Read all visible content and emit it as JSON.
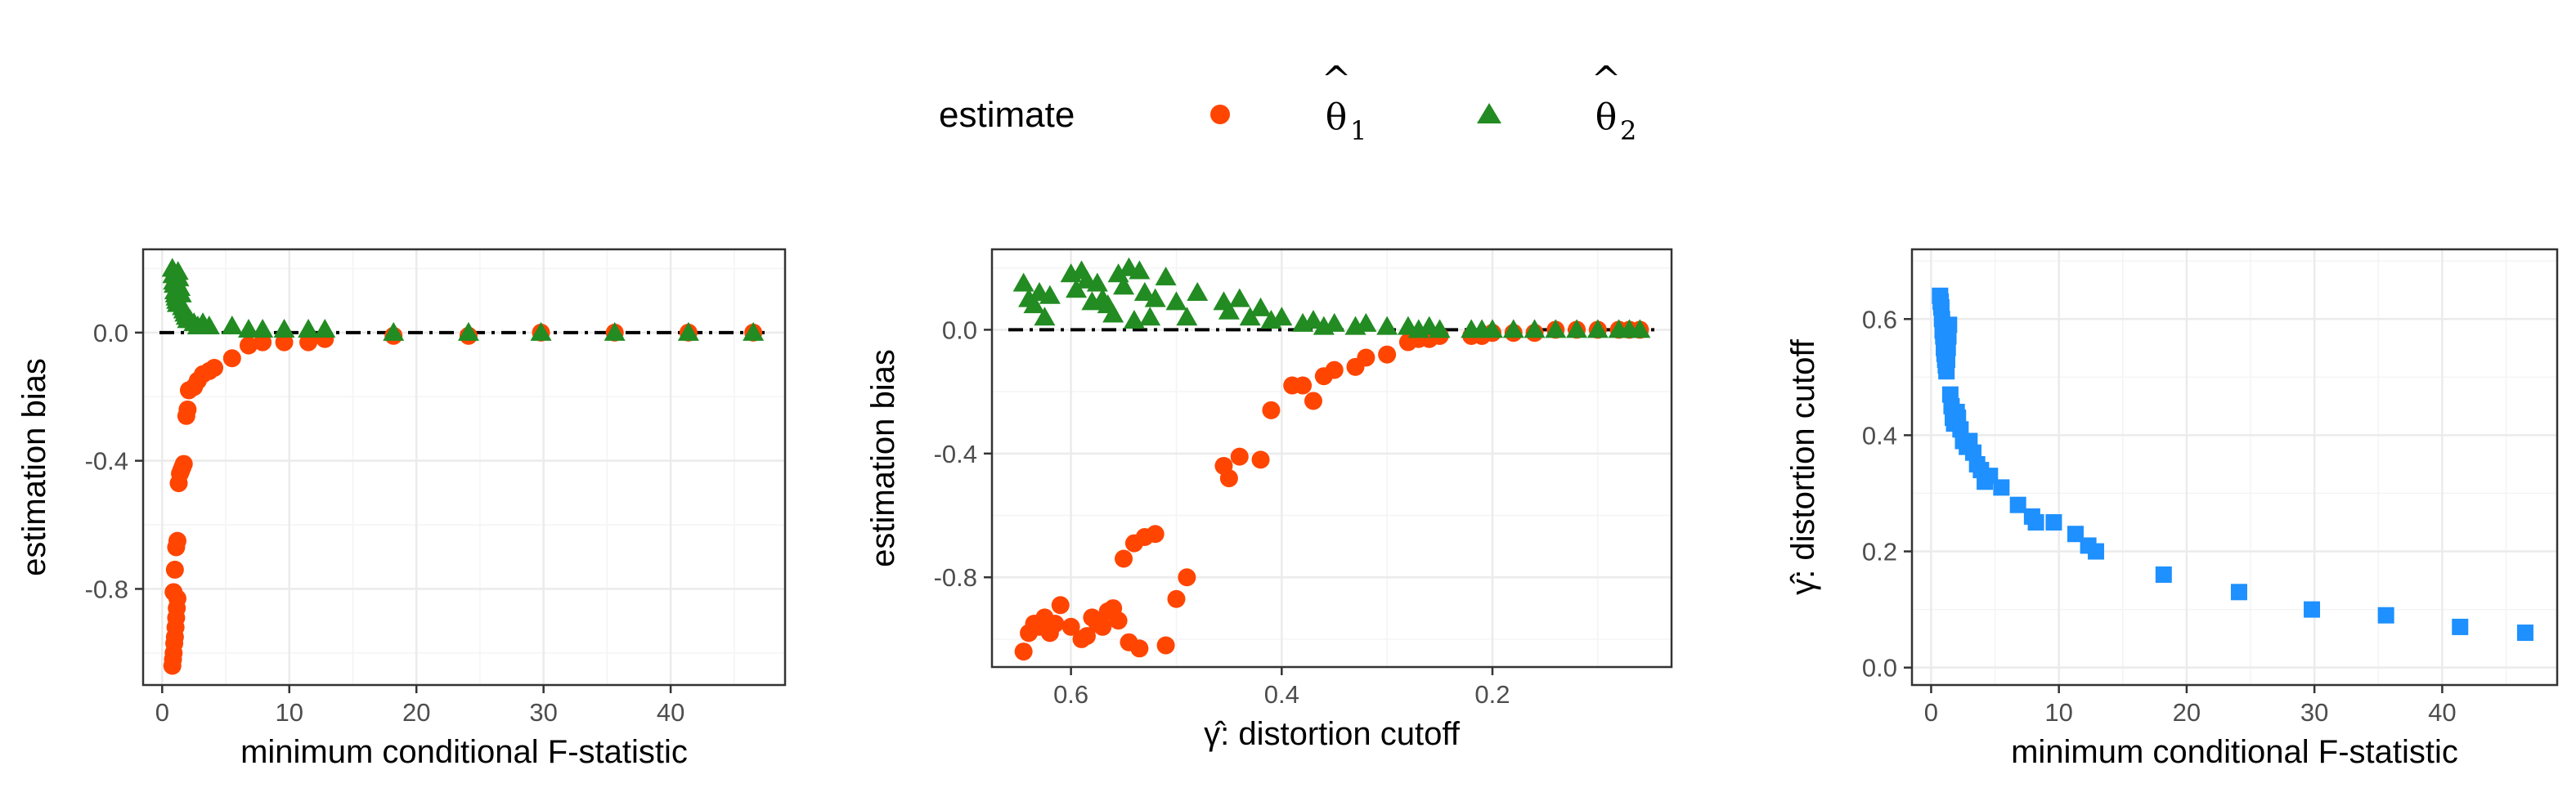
{
  "legend": {
    "title": "estimate",
    "entries": [
      {
        "symbol": "θ",
        "hat": "^",
        "subscript": "1",
        "color": "#FF4500",
        "shape": "circle"
      },
      {
        "symbol": "θ",
        "hat": "^",
        "subscript": "2",
        "color": "#228B22",
        "shape": "triangle"
      }
    ]
  },
  "colors": {
    "theta1": "#FF4500",
    "theta2": "#228B22",
    "gamma": "#1E90FF",
    "reference_line": "#000000",
    "grid_major": "#EBEBEB",
    "grid_minor": "#F4F4F4",
    "panel_border": "#333333"
  },
  "chart_data": [
    {
      "type": "scatter",
      "title": "",
      "xlabel": "minimum conditional F-statistic",
      "ylabel": "estimation bias",
      "xlim": [
        -1.5,
        49
      ],
      "ylim": [
        -1.1,
        0.26
      ],
      "xticks": [
        0,
        10,
        20,
        30,
        40
      ],
      "xtick_labels": [
        "0",
        "10",
        "20",
        "30",
        "40"
      ],
      "yticks": [
        0.0,
        -0.4,
        -0.8
      ],
      "ytick_labels": [
        "0.0",
        "-0.4",
        "-0.8"
      ],
      "reference_line": 0,
      "series": [
        {
          "name": "theta1",
          "marker": "circle",
          "color": "#FF4500",
          "x": [
            0.8,
            0.85,
            0.9,
            0.95,
            1.0,
            1.05,
            1.1,
            1.15,
            1.2,
            0.9,
            1.0,
            1.1,
            1.2,
            1.3,
            1.4,
            1.5,
            1.6,
            1.7,
            1.9,
            2.0,
            2.1,
            2.5,
            2.8,
            3.2,
            3.7,
            4.1,
            5.5,
            6.8,
            7.9,
            9.6,
            11.5,
            12.8,
            18.2,
            24.1,
            29.8,
            35.6,
            41.4,
            46.5
          ],
          "y": [
            -1.04,
            -1.02,
            -1.0,
            -0.97,
            -0.95,
            -0.92,
            -0.89,
            -0.86,
            -0.83,
            -0.81,
            -0.74,
            -0.67,
            -0.65,
            -0.47,
            -0.44,
            -0.43,
            -0.42,
            -0.41,
            -0.26,
            -0.24,
            -0.18,
            -0.17,
            -0.15,
            -0.13,
            -0.12,
            -0.11,
            -0.08,
            -0.04,
            -0.03,
            -0.03,
            -0.03,
            -0.02,
            -0.01,
            -0.01,
            0.0,
            0.0,
            0.0,
            0.0
          ]
        },
        {
          "name": "theta2",
          "marker": "triangle",
          "color": "#228B22",
          "x": [
            0.8,
            0.85,
            0.9,
            0.95,
            1.0,
            1.05,
            1.1,
            1.15,
            1.2,
            1.25,
            1.3,
            1.4,
            1.5,
            1.6,
            1.7,
            1.8,
            1.9,
            2.0,
            2.2,
            2.5,
            2.8,
            3.2,
            3.7,
            5.5,
            6.8,
            7.9,
            9.6,
            11.5,
            12.8,
            18.2,
            24.1,
            29.8,
            35.6,
            41.4,
            46.5
          ],
          "y": [
            0.2,
            0.18,
            0.16,
            0.15,
            0.13,
            0.12,
            0.11,
            0.1,
            0.09,
            0.19,
            0.17,
            0.14,
            0.12,
            0.08,
            0.07,
            0.06,
            0.05,
            0.04,
            0.04,
            0.03,
            0.02,
            0.03,
            0.02,
            0.02,
            0.01,
            0.01,
            0.01,
            0.01,
            0.01,
            0.0,
            0.0,
            0.0,
            0.0,
            0.0,
            0.0
          ]
        }
      ]
    },
    {
      "type": "scatter",
      "title": "",
      "xlabel": "γ̂: distortion cutoff",
      "ylabel": "estimation bias",
      "x_reversed": true,
      "xlim": [
        0.675,
        0.03
      ],
      "ylim": [
        -1.09,
        0.26
      ],
      "xticks": [
        0.6,
        0.4,
        0.2
      ],
      "xtick_labels": [
        "0.6",
        "0.4",
        "0.2"
      ],
      "yticks": [
        0.0,
        -0.4,
        -0.8
      ],
      "ytick_labels": [
        "0.0",
        "-0.4",
        "-0.8"
      ],
      "reference_line": 0,
      "series": [
        {
          "name": "theta1",
          "marker": "circle",
          "color": "#FF4500",
          "x": [
            0.645,
            0.64,
            0.635,
            0.63,
            0.625,
            0.62,
            0.615,
            0.61,
            0.6,
            0.59,
            0.585,
            0.58,
            0.575,
            0.57,
            0.565,
            0.56,
            0.555,
            0.55,
            0.545,
            0.54,
            0.535,
            0.53,
            0.52,
            0.51,
            0.5,
            0.49,
            0.455,
            0.45,
            0.44,
            0.42,
            0.41,
            0.39,
            0.38,
            0.37,
            0.36,
            0.35,
            0.33,
            0.32,
            0.3,
            0.28,
            0.27,
            0.26,
            0.25,
            0.22,
            0.21,
            0.2,
            0.18,
            0.16,
            0.14,
            0.12,
            0.1,
            0.08,
            0.07,
            0.06
          ],
          "y": [
            -1.04,
            -0.98,
            -0.95,
            -0.96,
            -0.93,
            -0.98,
            -0.95,
            -0.89,
            -0.96,
            -1.0,
            -0.99,
            -0.93,
            -0.95,
            -0.96,
            -0.91,
            -0.9,
            -0.94,
            -0.74,
            -1.01,
            -0.69,
            -1.03,
            -0.67,
            -0.66,
            -1.02,
            -0.87,
            -0.8,
            -0.44,
            -0.48,
            -0.41,
            -0.42,
            -0.26,
            -0.18,
            -0.18,
            -0.23,
            -0.15,
            -0.13,
            -0.12,
            -0.09,
            -0.08,
            -0.04,
            -0.03,
            -0.03,
            -0.02,
            -0.02,
            -0.02,
            -0.01,
            -0.01,
            -0.01,
            -0.0,
            0.0,
            0.0,
            0.0,
            0.0,
            0.0
          ]
        },
        {
          "name": "theta2",
          "marker": "triangle",
          "color": "#228B22",
          "x": [
            0.645,
            0.64,
            0.635,
            0.63,
            0.625,
            0.62,
            0.6,
            0.595,
            0.59,
            0.585,
            0.58,
            0.575,
            0.57,
            0.565,
            0.56,
            0.555,
            0.55,
            0.545,
            0.54,
            0.535,
            0.53,
            0.525,
            0.52,
            0.51,
            0.5,
            0.49,
            0.48,
            0.455,
            0.45,
            0.44,
            0.43,
            0.42,
            0.41,
            0.4,
            0.38,
            0.37,
            0.36,
            0.35,
            0.33,
            0.32,
            0.3,
            0.28,
            0.27,
            0.26,
            0.25,
            0.22,
            0.21,
            0.2,
            0.18,
            0.16,
            0.14,
            0.12,
            0.1,
            0.08,
            0.07,
            0.06
          ],
          "y": [
            0.15,
            0.1,
            0.08,
            0.12,
            0.04,
            0.11,
            0.18,
            0.13,
            0.19,
            0.16,
            0.09,
            0.15,
            0.1,
            0.08,
            0.05,
            0.18,
            0.14,
            0.2,
            0.03,
            0.19,
            0.12,
            0.04,
            0.1,
            0.17,
            0.09,
            0.04,
            0.12,
            0.09,
            0.06,
            0.1,
            0.04,
            0.07,
            0.03,
            0.04,
            0.02,
            0.03,
            0.01,
            0.02,
            0.01,
            0.02,
            0.01,
            0.01,
            0.0,
            0.01,
            0.0,
            0.0,
            0.0,
            0.0,
            0.0,
            0.0,
            0.0,
            0.0,
            0.0,
            0.0,
            0.0,
            0.0
          ]
        }
      ]
    },
    {
      "type": "scatter",
      "title": "",
      "xlabel": "minimum conditional F-statistic",
      "ylabel": "γ̂: distortion cutoff",
      "xlim": [
        -1.5,
        49
      ],
      "ylim": [
        -0.03,
        0.72
      ],
      "xticks": [
        0,
        10,
        20,
        30,
        40
      ],
      "xtick_labels": [
        "0",
        "10",
        "20",
        "30",
        "40"
      ],
      "yticks": [
        0.0,
        0.2,
        0.4,
        0.6
      ],
      "ytick_labels": [
        "0.0",
        "0.2",
        "0.4",
        "0.6"
      ],
      "series": [
        {
          "name": "gamma",
          "marker": "square",
          "color": "#1E90FF",
          "x": [
            0.7,
            0.75,
            0.8,
            0.85,
            0.9,
            0.95,
            1.0,
            1.05,
            1.1,
            1.15,
            1.2,
            1.25,
            1.3,
            1.35,
            1.4,
            1.5,
            1.6,
            1.7,
            1.8,
            2.0,
            2.1,
            2.3,
            2.5,
            2.8,
            3.0,
            3.3,
            3.6,
            3.9,
            4.2,
            4.6,
            5.5,
            6.8,
            7.9,
            8.2,
            9.6,
            11.3,
            12.3,
            12.9,
            18.2,
            24.1,
            29.8,
            35.6,
            41.4,
            46.5
          ],
          "y": [
            0.64,
            0.63,
            0.62,
            0.6,
            0.58,
            0.57,
            0.55,
            0.54,
            0.53,
            0.52,
            0.51,
            0.53,
            0.55,
            0.57,
            0.59,
            0.47,
            0.45,
            0.43,
            0.42,
            0.44,
            0.43,
            0.41,
            0.39,
            0.38,
            0.39,
            0.37,
            0.35,
            0.34,
            0.32,
            0.33,
            0.31,
            0.28,
            0.26,
            0.25,
            0.25,
            0.23,
            0.21,
            0.2,
            0.16,
            0.13,
            0.1,
            0.09,
            0.07,
            0.06
          ]
        }
      ]
    }
  ]
}
